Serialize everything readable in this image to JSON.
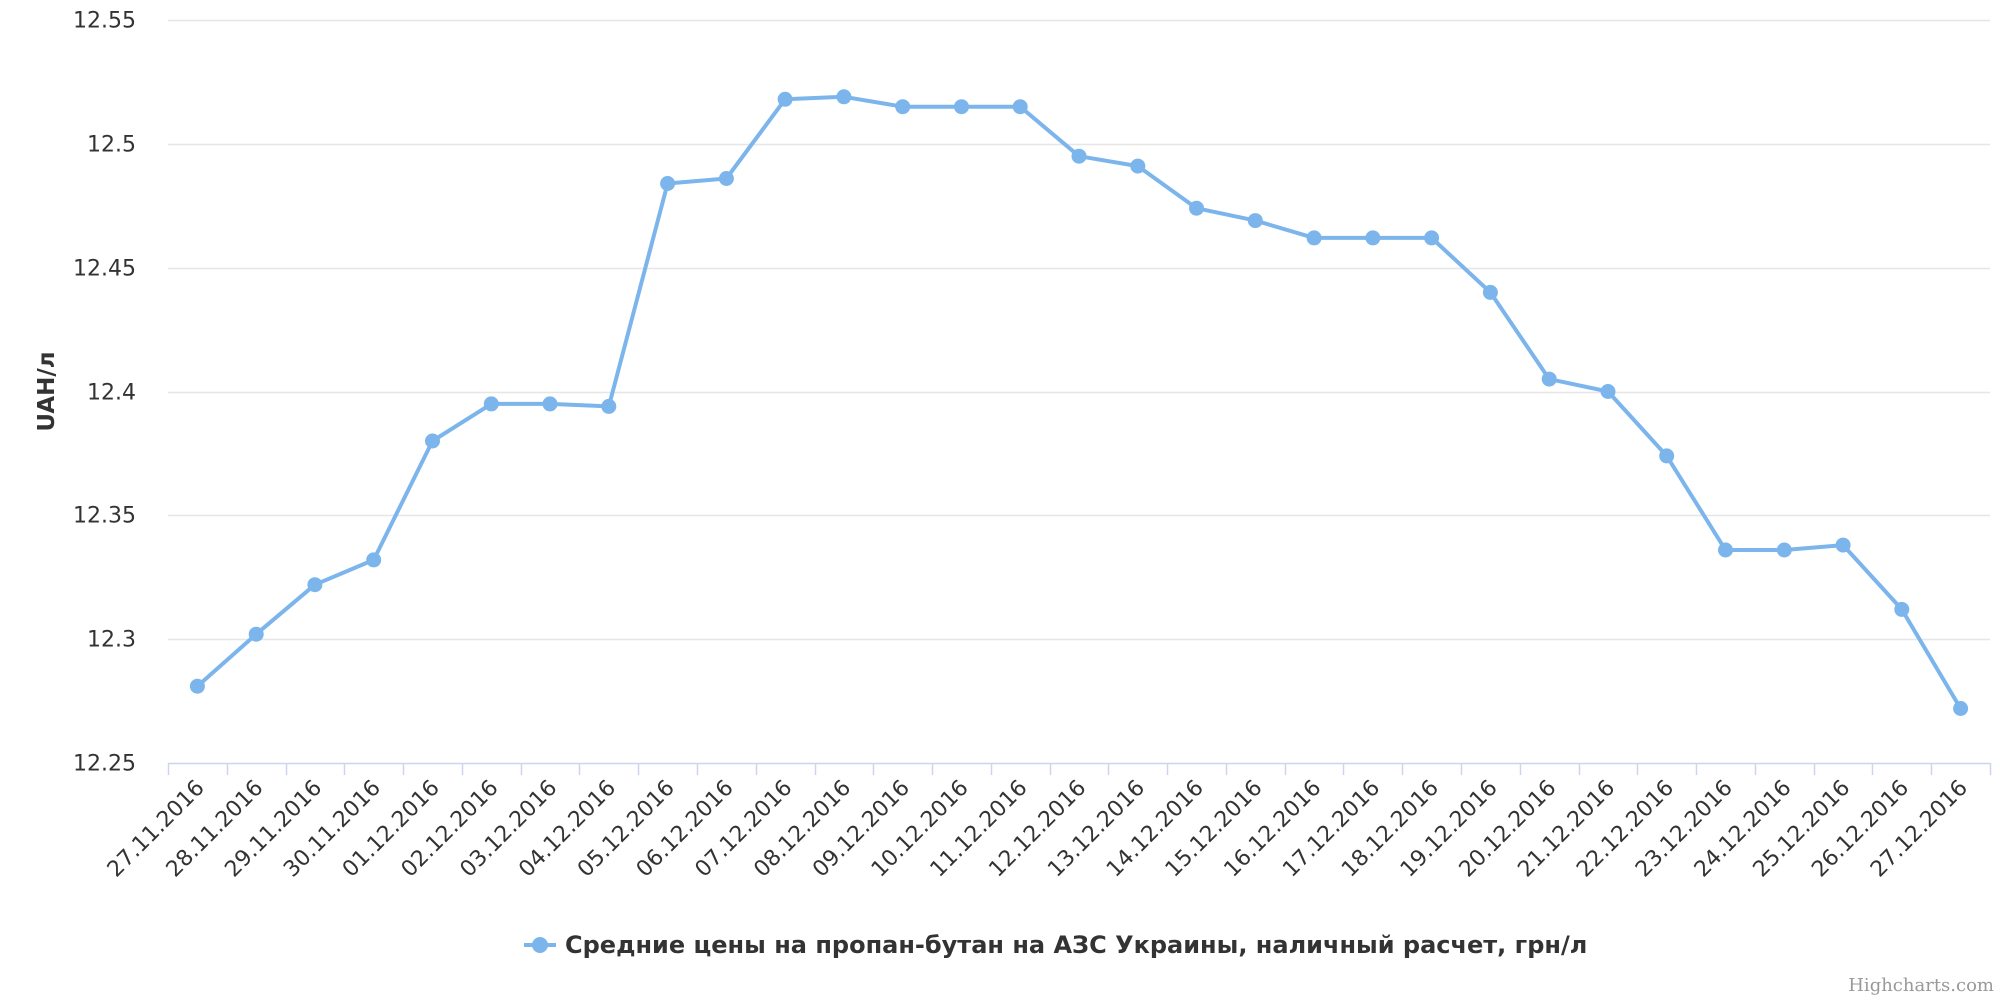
{
  "chart_data": {
    "type": "line",
    "title": "",
    "xlabel": "",
    "ylabel": "UAH/л",
    "ylim": [
      12.25,
      12.55
    ],
    "yticks": [
      12.25,
      12.3,
      12.35,
      12.4,
      12.45,
      12.5,
      12.55
    ],
    "ytick_labels": [
      "12.25",
      "12.3",
      "12.35",
      "12.4",
      "12.45",
      "12.5",
      "12.55"
    ],
    "grid": true,
    "legend_position": "bottom-center",
    "categories": [
      "27.11.2016",
      "28.11.2016",
      "29.11.2016",
      "30.11.2016",
      "01.12.2016",
      "02.12.2016",
      "03.12.2016",
      "04.12.2016",
      "05.12.2016",
      "06.12.2016",
      "07.12.2016",
      "08.12.2016",
      "09.12.2016",
      "10.12.2016",
      "11.12.2016",
      "12.12.2016",
      "13.12.2016",
      "14.12.2016",
      "15.12.2016",
      "16.12.2016",
      "17.12.2016",
      "18.12.2016",
      "19.12.2016",
      "20.12.2016",
      "21.12.2016",
      "22.12.2016",
      "23.12.2016",
      "24.12.2016",
      "25.12.2016",
      "26.12.2016",
      "27.12.2016"
    ],
    "series": [
      {
        "name": "Средние цены на пропан-бутан на АЗС Украины, наличный расчет, грн/л",
        "color": "#7cb5ec",
        "values": [
          12.281,
          12.302,
          12.322,
          12.332,
          12.38,
          12.395,
          12.395,
          12.394,
          12.484,
          12.486,
          12.518,
          12.519,
          12.515,
          12.515,
          12.515,
          12.495,
          12.491,
          12.474,
          12.469,
          12.462,
          12.462,
          12.462,
          12.44,
          12.405,
          12.4,
          12.374,
          12.336,
          12.336,
          12.338,
          12.312,
          12.272
        ]
      }
    ]
  },
  "colors": {
    "grid": "#e6e6e6",
    "axis": "#ccd6eb",
    "label": "#333333",
    "credits": "#999999"
  },
  "credits": "Highcharts.com"
}
